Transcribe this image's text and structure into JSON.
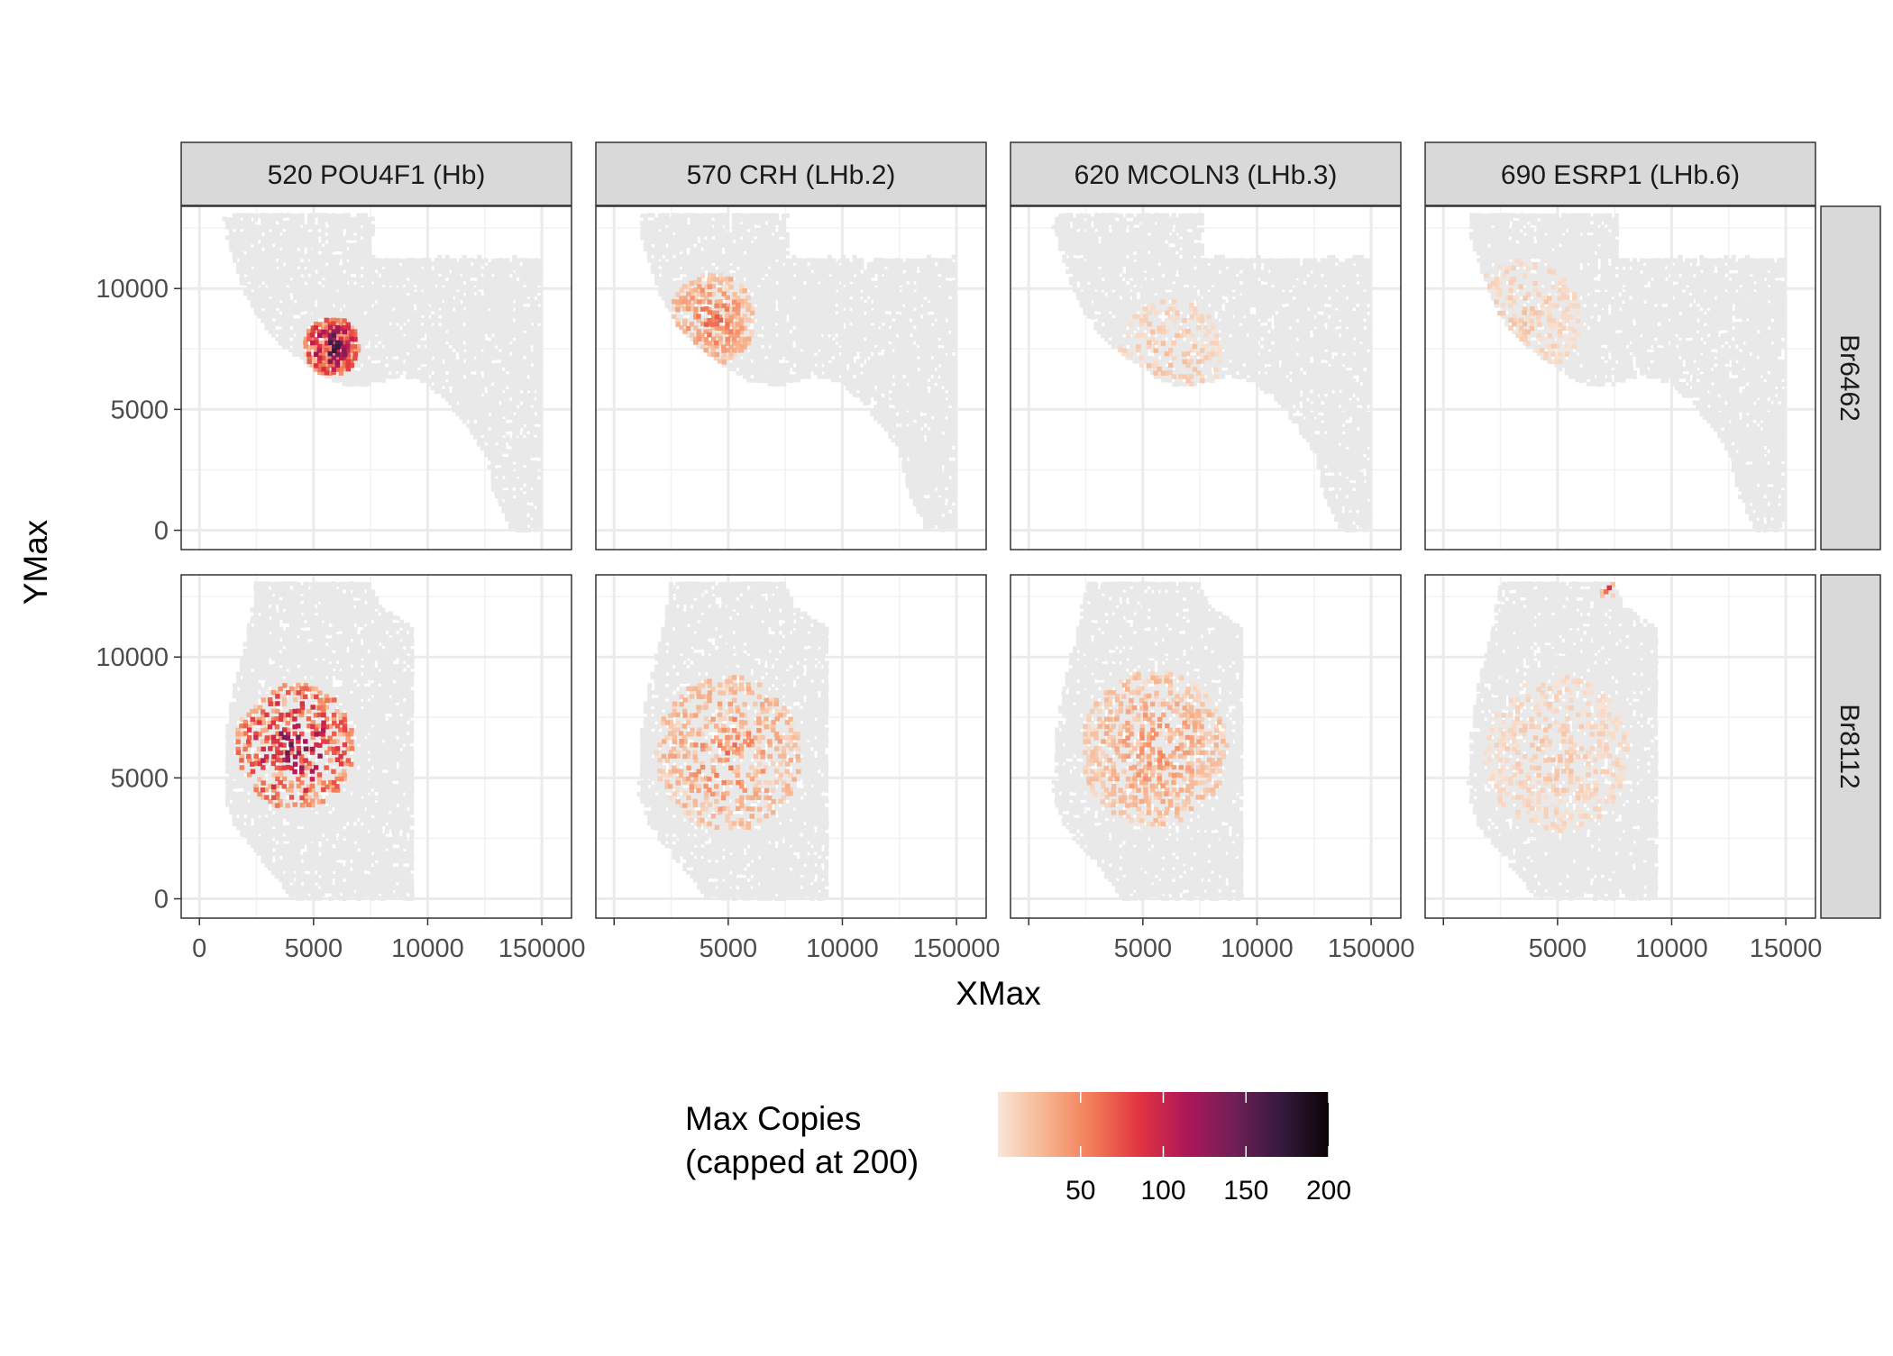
{
  "chart_data": {
    "type": "scatter",
    "title": "",
    "xlabel": "XMax",
    "ylabel": "YMax",
    "xlim": [
      -800,
      16300
    ],
    "ylim": [
      -800,
      13400
    ],
    "x_ticks": [
      0,
      5000,
      10000,
      15000
    ],
    "x_tick_labels": [
      "0",
      "5000",
      "10000",
      "15000"
    ],
    "y_ticks": [
      0,
      5000,
      10000
    ],
    "y_tick_labels": [
      "0",
      "5000",
      "10000"
    ],
    "x_tick_label_rows": [
      "0        5000    10000   150000",
      "5000    10000   150000",
      "5000    10000   150000",
      "5000    10000   15000"
    ],
    "grid": true,
    "facets": {
      "columns": [
        "520 POU4F1 (Hb)",
        "570 CRH (LHb.2)",
        "620 MCOLN3 (LHb.3)",
        "690 ESRP1 (LHb.6)"
      ],
      "rows": [
        "Br6462",
        "Br8112"
      ]
    },
    "legend": {
      "title_line1": "Max Copies",
      "title_line2": "(capped at 200)",
      "position": "bottom",
      "min": 0,
      "max": 200,
      "ticks": [
        50,
        100,
        150,
        200
      ],
      "tick_labels": [
        "50",
        "100",
        "150",
        "200"
      ],
      "colors": [
        "#f9e6d8",
        "#f6b48f",
        "#f27c56",
        "#e13342",
        "#ad1759",
        "#701f57",
        "#35193e",
        "#0b0405"
      ]
    },
    "background_color": "#ececec",
    "samples": {
      "Br6462": {
        "tissue_outline": [
          [
            1100,
            13100
          ],
          [
            7600,
            13100
          ],
          [
            7600,
            11300
          ],
          [
            15000,
            11300
          ],
          [
            15000,
            0
          ],
          [
            13700,
            0
          ],
          [
            12900,
            1500
          ],
          [
            12600,
            3000
          ],
          [
            11900,
            4100
          ],
          [
            10900,
            5300
          ],
          [
            9900,
            6100
          ],
          [
            8800,
            6400
          ],
          [
            7800,
            6100
          ],
          [
            6800,
            5900
          ],
          [
            5800,
            6200
          ],
          [
            4800,
            6800
          ],
          [
            3800,
            7500
          ],
          [
            2800,
            8400
          ],
          [
            2000,
            9800
          ],
          [
            1500,
            11200
          ],
          [
            1100,
            12500
          ]
        ],
        "hotspots": [
          [
            [
              5800,
              7600,
              1200,
              200,
              1.0
            ],
            [
              600,
              400,
              40,
              22,
              0.006
            ]
          ],
          [
            [
              4300,
              8700,
              1900,
              80,
              0.6
            ],
            [
              700,
              300,
              40,
              14,
              0.004
            ]
          ],
          [
            [
              6200,
              7300,
              2300,
              30,
              0.3
            ],
            [
              600,
              400,
              40,
              8,
              0.002
            ]
          ],
          [
            [
              3500,
              8700,
              2500,
              25,
              0.3
            ],
            [
              600,
              500,
              40,
              6,
              0.002
            ]
          ]
        ]
      },
      "Br8112": {
        "tissue_outline": [
          [
            2500,
            13100
          ],
          [
            7500,
            13100
          ],
          [
            7900,
            12100
          ],
          [
            9400,
            11200
          ],
          [
            9400,
            0
          ],
          [
            4100,
            0
          ],
          [
            3200,
            1100
          ],
          [
            2300,
            2100
          ],
          [
            1500,
            3100
          ],
          [
            1100,
            4300
          ],
          [
            1100,
            6100
          ],
          [
            1300,
            7600
          ],
          [
            1600,
            9100
          ],
          [
            2000,
            10600
          ],
          [
            2300,
            11900
          ]
        ],
        "hotspots": [
          [
            [
              4200,
              6300,
              2600,
              170,
              0.45
            ],
            [
              500,
              300,
              40,
              25,
              0.005
            ]
          ],
          [
            [
              5000,
              6000,
              3200,
              70,
              0.35
            ],
            [
              500,
              300,
              40,
              10,
              0.002
            ]
          ],
          [
            [
              5500,
              6200,
              3200,
              60,
              0.45
            ],
            [
              500,
              300,
              40,
              6,
              0.002
            ]
          ],
          [
            [
              7200,
              12800,
              400,
              120,
              0.3
            ],
            [
              5000,
              6000,
              3200,
              25,
              0.3
            ],
            [
              500,
              300,
              40,
              3,
              0.001
            ]
          ]
        ]
      }
    }
  }
}
